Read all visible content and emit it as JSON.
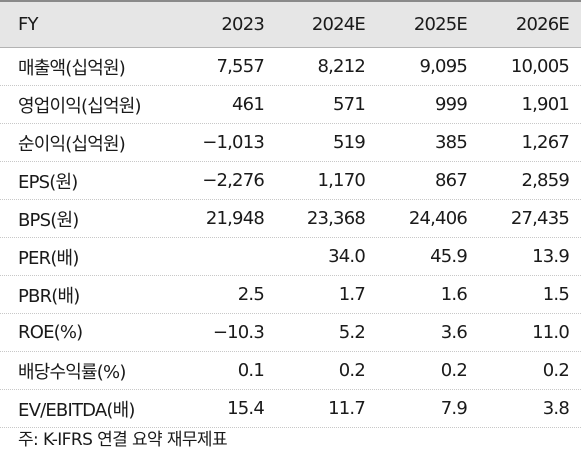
{
  "columns": [
    "FY",
    "2023",
    "2024E",
    "2025E",
    "2026E"
  ],
  "rows": [
    {
      "label": "매출액(십억원)",
      "values": [
        "7,557",
        "8,212",
        "9,095",
        "10,005"
      ]
    },
    {
      "label": "영업이익(십억원)",
      "values": [
        "461",
        "571",
        "999",
        "1,901"
      ]
    },
    {
      "label": "순이익(십억원)",
      "values": [
        "−1,013",
        "519",
        "385",
        "1,267"
      ]
    },
    {
      "label": "EPS(원)",
      "values": [
        "−2,276",
        "1,170",
        "867",
        "2,859"
      ]
    },
    {
      "label": "BPS(원)",
      "values": [
        "21,948",
        "23,368",
        "24,406",
        "27,435"
      ]
    },
    {
      "label": "PER(배)",
      "values": [
        "",
        "34.0",
        "45.9",
        "13.9"
      ]
    },
    {
      "label": "PBR(배)",
      "values": [
        "2.5",
        "1.7",
        "1.6",
        "1.5"
      ]
    },
    {
      "label": "ROE(%)",
      "values": [
        "−10.3",
        "5.2",
        "3.6",
        "11.0"
      ]
    },
    {
      "label": "배당수익률(%)",
      "values": [
        "0.1",
        "0.2",
        "0.2",
        "0.2"
      ]
    },
    {
      "label": "EV/EBITDA(배)",
      "values": [
        "15.4",
        "11.7",
        "7.9",
        "3.8"
      ]
    }
  ],
  "note": "주: K-IFRS 연결 요약 재무제표"
}
